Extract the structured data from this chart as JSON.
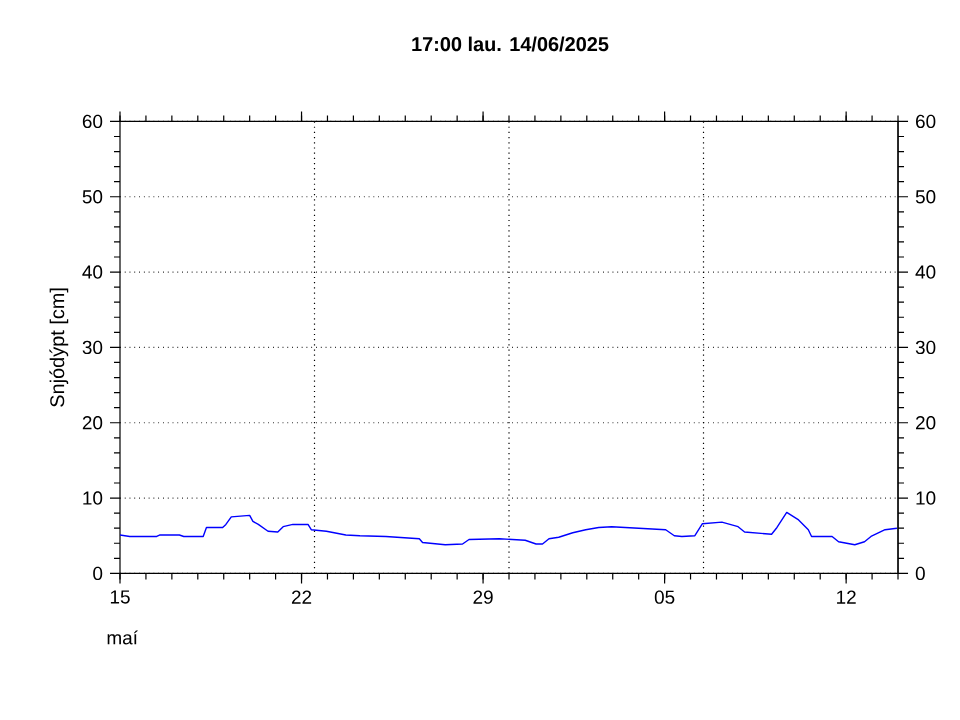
{
  "chart_data": {
    "type": "line",
    "title": "17:00 lau. 14/06/2025",
    "ylabel": "Snjódýpt [cm]",
    "annotations": [
      "maí"
    ],
    "xlim": [
      "2025-05-15T00:00",
      "2025-06-14T00:00"
    ],
    "xticks": [
      {
        "value": "2025-05-15",
        "label": "15"
      },
      {
        "value": "2025-05-22",
        "label": "22"
      },
      {
        "value": "2025-05-29",
        "label": "29"
      },
      {
        "value": "2025-06-05",
        "label": "05"
      },
      {
        "value": "2025-06-12",
        "label": "12"
      }
    ],
    "ylim": [
      0,
      60
    ],
    "yticks": [
      0,
      10,
      20,
      30,
      40,
      50,
      60
    ],
    "y2lim": [
      0,
      60
    ],
    "y2ticks": [
      0,
      10,
      20,
      30,
      40,
      50,
      60
    ],
    "grid": "y",
    "line_style": "solid",
    "ref_lines": [
      {
        "axis": "x",
        "value": "2025-05-22T12:00",
        "line_style": "dotted"
      },
      {
        "axis": "x",
        "value": "2025-05-30T00:00",
        "line_style": "dotted"
      },
      {
        "axis": "x",
        "value": "2025-06-06T12:00",
        "line_style": "dotted"
      }
    ],
    "series": [
      {
        "color": "#0000ff",
        "x": [
          "2025-05-15T00:00",
          "2025-05-15T09:00",
          "2025-05-16T10:00",
          "2025-05-16T13:00",
          "2025-05-17T07:00",
          "2025-05-17T11:00",
          "2025-05-18T05:00",
          "2025-05-18T08:00",
          "2025-05-18T23:00",
          "2025-05-19T02:00",
          "2025-05-19T07:00",
          "2025-05-20T00:00",
          "2025-05-20T03:00",
          "2025-05-20T08:00",
          "2025-05-20T17:00",
          "2025-05-21T02:00",
          "2025-05-21T07:00",
          "2025-05-21T16:00",
          "2025-05-22T06:00",
          "2025-05-22T09:00",
          "2025-05-22T23:00",
          "2025-05-23T17:00",
          "2025-05-24T06:00",
          "2025-05-25T06:00",
          "2025-05-26T13:00",
          "2025-05-26T16:00",
          "2025-05-27T13:00",
          "2025-05-28T05:00",
          "2025-05-28T11:00",
          "2025-05-29T15:00",
          "2025-05-30T15:00",
          "2025-05-31T01:00",
          "2025-05-31T07:00",
          "2025-05-31T13:00",
          "2025-05-31T22:00",
          "2025-06-01T11:00",
          "2025-06-01T23:00",
          "2025-06-02T11:00",
          "2025-06-02T23:00",
          "2025-06-04T00:00",
          "2025-06-05T01:00",
          "2025-06-05T09:00",
          "2025-06-05T16:00",
          "2025-06-06T04:00",
          "2025-06-06T11:00",
          "2025-06-07T05:00",
          "2025-06-07T20:00",
          "2025-06-08T02:00",
          "2025-06-09T03:00",
          "2025-06-09T08:00",
          "2025-06-09T17:00",
          "2025-06-10T04:00",
          "2025-06-10T13:00",
          "2025-06-10T16:00",
          "2025-06-11T11:00",
          "2025-06-11T17:00",
          "2025-06-12T08:00",
          "2025-06-12T17:00",
          "2025-06-12T23:00",
          "2025-06-13T12:00",
          "2025-06-13T23:00"
        ],
        "values": [
          5.1,
          4.9,
          4.9,
          5.1,
          5.1,
          4.9,
          4.9,
          6.1,
          6.1,
          6.5,
          7.5,
          7.7,
          6.9,
          6.5,
          5.6,
          5.5,
          6.2,
          6.5,
          6.5,
          5.8,
          5.6,
          5.1,
          5.0,
          4.9,
          4.6,
          4.1,
          3.8,
          3.9,
          4.5,
          4.6,
          4.4,
          3.9,
          3.9,
          4.6,
          4.8,
          5.4,
          5.8,
          6.1,
          6.2,
          6.0,
          5.8,
          5.0,
          4.9,
          5.0,
          6.6,
          6.8,
          6.2,
          5.5,
          5.2,
          6.1,
          8.1,
          7.1,
          5.8,
          4.9,
          4.9,
          4.2,
          3.8,
          4.2,
          4.9,
          5.8,
          6.0
        ]
      }
    ]
  }
}
